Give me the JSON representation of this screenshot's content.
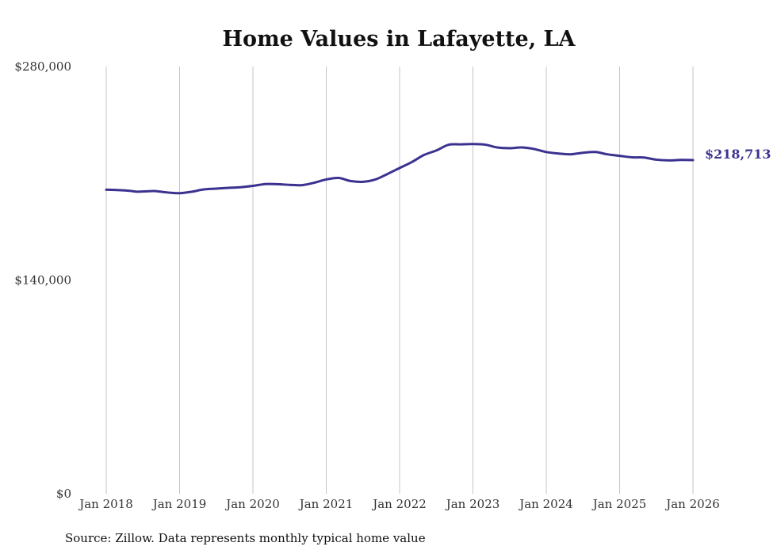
{
  "chart_data": {
    "type": "line",
    "title": "Home Values in Lafayette, LA",
    "xlabel": "",
    "ylabel": "",
    "x_tick_labels": [
      "Jan 2018",
      "Jan 2019",
      "Jan 2020",
      "Jan 2021",
      "Jan 2022",
      "Jan 2023",
      "Jan 2024",
      "Jan 2025",
      "Jan 2026"
    ],
    "y_tick_labels": [
      "$0",
      "$140,000",
      "$280,000"
    ],
    "y_ticks": [
      0,
      140000,
      280000
    ],
    "ylim": [
      0,
      280000
    ],
    "xlim": [
      2018.0,
      2026.0
    ],
    "grid": "vertical",
    "series": [
      {
        "name": "Typical home value",
        "color": "#3b3290",
        "x": [
          2018.0,
          2018.17,
          2018.33,
          2018.42,
          2018.58,
          2018.67,
          2018.83,
          2019.0,
          2019.17,
          2019.33,
          2019.5,
          2019.67,
          2019.83,
          2020.0,
          2020.17,
          2020.33,
          2020.5,
          2020.67,
          2020.83,
          2021.0,
          2021.17,
          2021.33,
          2021.5,
          2021.67,
          2021.83,
          2022.0,
          2022.17,
          2022.33,
          2022.5,
          2022.67,
          2022.83,
          2023.0,
          2023.17,
          2023.33,
          2023.5,
          2023.67,
          2023.83,
          2024.0,
          2024.17,
          2024.33,
          2024.5,
          2024.67,
          2024.83,
          2025.0,
          2025.17,
          2025.33,
          2025.5,
          2025.67,
          2025.83,
          2026.0
        ],
        "y": [
          199300,
          199000,
          198500,
          198000,
          198300,
          198400,
          197500,
          197000,
          198000,
          199500,
          200000,
          200500,
          200900,
          201800,
          203000,
          202900,
          202500,
          202300,
          203800,
          206000,
          207000,
          205000,
          204500,
          206000,
          209500,
          213500,
          217500,
          222000,
          225000,
          228800,
          229000,
          229200,
          228800,
          227000,
          226500,
          227000,
          226000,
          224000,
          223000,
          222500,
          223500,
          224000,
          222500,
          221500,
          220500,
          220400,
          219000,
          218500,
          218800,
          218713
        ]
      }
    ],
    "end_label": "$218,713",
    "source_note": "Source: Zillow. Data represents monthly typical home value"
  }
}
